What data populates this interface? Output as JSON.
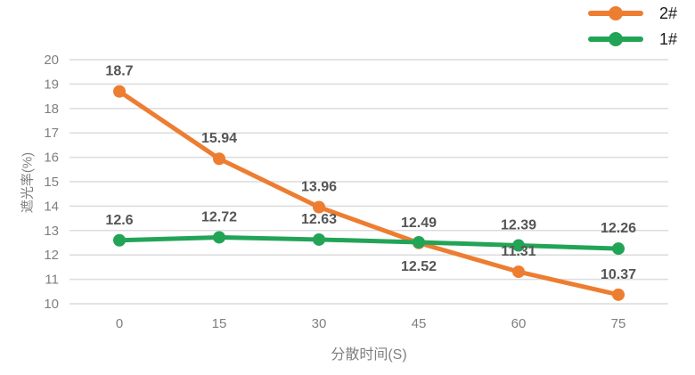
{
  "chart_data": {
    "type": "line",
    "title": "",
    "categories": [
      "0",
      "15",
      "30",
      "45",
      "60",
      "75"
    ],
    "series": [
      {
        "name": "2#",
        "color": "#ED7D31",
        "values": [
          18.7,
          15.94,
          13.96,
          12.49,
          11.31,
          10.37
        ],
        "label_pos": [
          "above",
          "above",
          "above",
          "above",
          "above",
          "above"
        ]
      },
      {
        "name": "1#",
        "color": "#22A457",
        "values": [
          12.6,
          12.72,
          12.63,
          12.52,
          12.39,
          12.26
        ],
        "label_pos": [
          "above",
          "above",
          "above",
          "below",
          "above",
          "above"
        ]
      }
    ],
    "xlabel": "分散时间(S)",
    "ylabel": "遮光率(%)",
    "ylim": [
      10,
      20
    ],
    "ytick_step": 1,
    "grid": true,
    "legend_position": "top-right"
  },
  "colors": {
    "grid": "#DCDCDC",
    "tick_label": "#7F7F7F",
    "axis_title": "#7F7F7F",
    "data_label": "#555555",
    "legend_text": "#1A1A1A",
    "background": "#FFFFFF"
  }
}
